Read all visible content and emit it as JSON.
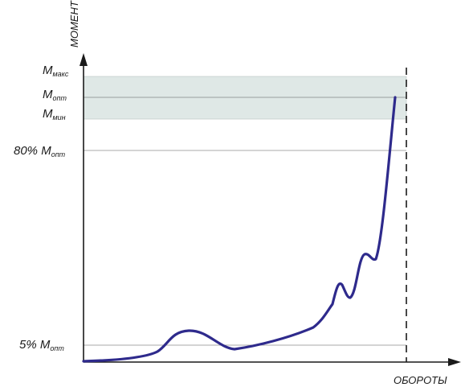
{
  "axes": {
    "y_label": "МОМЕНТ",
    "x_label": "ОБОРОТЫ"
  },
  "levels": [
    {
      "id": "m_max",
      "main": "M",
      "sub": "макс"
    },
    {
      "id": "m_opt",
      "main": "M",
      "sub": "опт"
    },
    {
      "id": "m_min",
      "main": "M",
      "sub": "мин"
    },
    {
      "id": "m_80",
      "prefix": "80% ",
      "main": "M",
      "sub": "опт"
    },
    {
      "id": "m_5",
      "prefix": "5% ",
      "main": "M",
      "sub": "опт"
    }
  ],
  "colors": {
    "curve": "#2e2a8c",
    "band": "#dfe8e6",
    "axis": "#1a1a1a"
  }
}
